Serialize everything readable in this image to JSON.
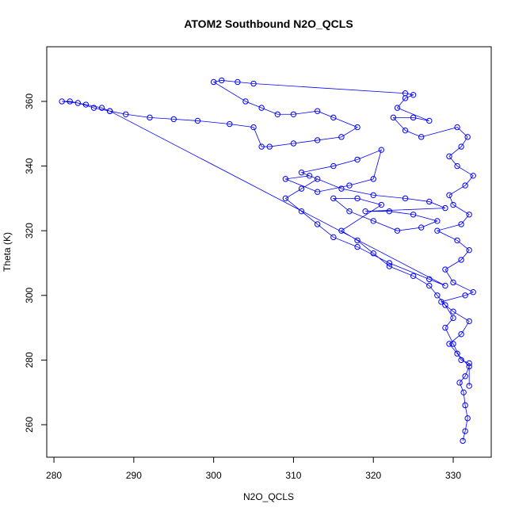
{
  "chart_data": {
    "type": "scatter",
    "line": true,
    "title": "ATOM2 Southbound N2O_QCLS",
    "x_label": "N2O_QCLS",
    "y_label": "Theta (K)",
    "color": "#0000ff",
    "xlim": [
      279.1,
      334.76
    ],
    "ylim": [
      249.95,
      376.9
    ],
    "xticks": [
      280,
      290,
      300,
      310,
      320,
      330
    ],
    "yticks": [
      260,
      280,
      300,
      320,
      340,
      360
    ],
    "x": [
      331.2,
      331.5,
      331.8,
      331.5,
      331.3,
      330.8,
      331.5,
      332,
      330.5,
      329.5,
      331,
      332,
      330,
      328.5,
      331.5,
      332.5,
      330,
      329,
      331,
      332,
      330.5,
      328,
      331,
      332,
      330,
      329.5,
      331.5,
      332.5,
      330.5,
      329.5,
      331,
      331.8,
      330.5,
      326,
      324,
      322.5,
      325,
      327,
      323,
      324,
      325,
      324,
      305,
      303,
      301,
      300,
      304,
      306,
      308,
      310,
      313,
      315,
      318,
      316,
      313,
      310,
      307,
      306,
      305,
      302,
      298,
      295,
      292,
      289,
      287,
      285,
      283,
      281,
      282,
      284,
      286,
      287,
      329,
      327,
      322,
      318,
      315,
      313,
      311,
      309,
      311,
      313,
      311,
      315,
      318,
      321,
      320,
      317,
      313,
      309,
      312,
      316,
      320,
      324,
      327,
      329,
      319,
      322,
      325,
      328,
      326,
      323,
      320,
      317,
      315,
      318,
      321,
      316,
      318,
      320,
      322,
      325,
      327,
      328,
      329,
      330,
      329,
      330,
      331,
      332,
      332
    ],
    "values": [
      255,
      258,
      262,
      266,
      270,
      273,
      275,
      278,
      282,
      285,
      288,
      292,
      295,
      298,
      300,
      301,
      304,
      308,
      311,
      314,
      317,
      320,
      322,
      325,
      328,
      331,
      334,
      337,
      340,
      343,
      346,
      349,
      352,
      349,
      351,
      355,
      355,
      354,
      358,
      361,
      362,
      362.5,
      365.5,
      366,
      366.5,
      366,
      360,
      358,
      356,
      356,
      357,
      355,
      352,
      349,
      348,
      347,
      346,
      346,
      352,
      353,
      354,
      354.5,
      355,
      356,
      357,
      358,
      359.5,
      360,
      360,
      359,
      358,
      357,
      303,
      305,
      310,
      315,
      318,
      322,
      326,
      330,
      333,
      336,
      338,
      340,
      342,
      345,
      336,
      334,
      332,
      336,
      337,
      333,
      331,
      330,
      329,
      327,
      326,
      326,
      325,
      323,
      321,
      320,
      323,
      326,
      330,
      330,
      328,
      320,
      317,
      313,
      309,
      306,
      303,
      300,
      297,
      293,
      290,
      285,
      280,
      279,
      272
    ]
  }
}
